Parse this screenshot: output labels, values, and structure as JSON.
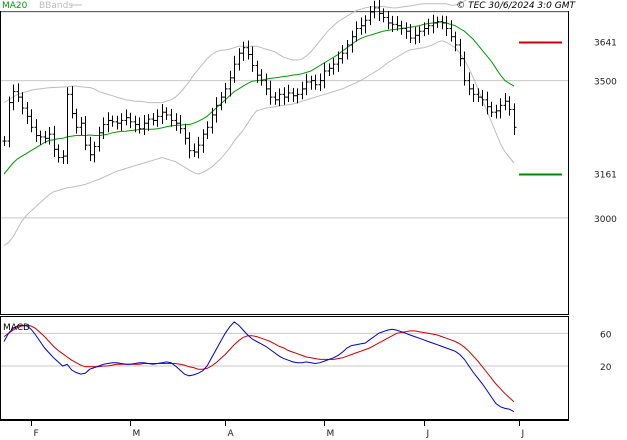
{
  "header": {
    "ma_label": "MA20",
    "bb_label": "BBands",
    "copyright": "© TEC 30/6/2024 3:0 GMT"
  },
  "colors": {
    "ma": "#009900",
    "bb": "#bdbdbd",
    "price": "#000000",
    "macd": "#0000cc",
    "signal": "#cc0000",
    "resistance": "#cc0000",
    "support": "#008800",
    "grid": "#c8c8c8",
    "frame": "#000000"
  },
  "chart_data": [
    {
      "type": "bar",
      "subtype": "ohlc",
      "name": "price-panel",
      "yaxis": {
        "ticks": [
          "3500",
          "3000"
        ],
        "tick_values": [
          3500,
          3000
        ],
        "range": [
          2650,
          3750
        ],
        "position": "right"
      },
      "xaxis": {
        "labels": [
          "F",
          "M",
          "A",
          "M",
          "J",
          "J"
        ],
        "label_index": [
          6,
          28,
          49,
          71,
          93,
          114
        ]
      },
      "levels": [
        {
          "label": "3641",
          "value": 3641,
          "color": "#cc0000"
        },
        {
          "label": "3161",
          "value": 3161,
          "color": "#008800"
        }
      ],
      "closes": [
        3280,
        3420,
        3460,
        3440,
        3400,
        3370,
        3330,
        3300,
        3295,
        3290,
        3305,
        3250,
        3220,
        3225,
        3450,
        3380,
        3330,
        3345,
        3265,
        3230,
        3260,
        3310,
        3340,
        3355,
        3350,
        3345,
        3355,
        3365,
        3350,
        3340,
        3325,
        3345,
        3360,
        3355,
        3370,
        3385,
        3375,
        3355,
        3345,
        3325,
        3290,
        3245,
        3240,
        3265,
        3305,
        3330,
        3375,
        3410,
        3440,
        3470,
        3510,
        3560,
        3600,
        3620,
        3595,
        3555,
        3520,
        3500,
        3470,
        3440,
        3430,
        3450,
        3440,
        3455,
        3445,
        3450,
        3470,
        3495,
        3500,
        3485,
        3500,
        3535,
        3545,
        3560,
        3580,
        3600,
        3630,
        3660,
        3690,
        3700,
        3720,
        3750,
        3765,
        3745,
        3730,
        3710,
        3705,
        3700,
        3690,
        3680,
        3655,
        3665,
        3680,
        3690,
        3700,
        3710,
        3715,
        3710,
        3690,
        3660,
        3630,
        3580,
        3500,
        3470,
        3450,
        3440,
        3430,
        3405,
        3385,
        3390,
        3410,
        3425,
        3395,
        3330
      ],
      "ma20": [
        3160,
        3180,
        3200,
        3215,
        3225,
        3235,
        3245,
        3255,
        3265,
        3275,
        3282,
        3285,
        3288,
        3290,
        3295,
        3298,
        3300,
        3300,
        3300,
        3302,
        3300,
        3300,
        3302,
        3305,
        3310,
        3313,
        3315,
        3316,
        3318,
        3320,
        3322,
        3323,
        3323,
        3323,
        3325,
        3328,
        3332,
        3335,
        3337,
        3338,
        3340,
        3340,
        3345,
        3352,
        3360,
        3370,
        3385,
        3400,
        3415,
        3430,
        3445,
        3460,
        3470,
        3480,
        3490,
        3498,
        3500,
        3502,
        3505,
        3508,
        3510,
        3512,
        3515,
        3517,
        3520,
        3522,
        3525,
        3530,
        3535,
        3545,
        3555,
        3565,
        3575,
        3585,
        3595,
        3608,
        3620,
        3632,
        3644,
        3653,
        3660,
        3665,
        3670,
        3675,
        3680,
        3683,
        3685,
        3687,
        3690,
        3692,
        3695,
        3697,
        3700,
        3705,
        3708,
        3710,
        3712,
        3714,
        3710,
        3705,
        3700,
        3690,
        3680,
        3665,
        3650,
        3630,
        3610,
        3590,
        3570,
        3545,
        3520,
        3500,
        3490,
        3480
      ],
      "bb_upper": [
        3420,
        3430,
        3440,
        3450,
        3455,
        3460,
        3465,
        3468,
        3470,
        3472,
        3474,
        3475,
        3476,
        3477,
        3478,
        3480,
        3480,
        3478,
        3476,
        3475,
        3470,
        3460,
        3455,
        3450,
        3445,
        3440,
        3435,
        3430,
        3428,
        3425,
        3425,
        3423,
        3420,
        3420,
        3420,
        3420,
        3425,
        3430,
        3440,
        3455,
        3475,
        3495,
        3520,
        3540,
        3560,
        3580,
        3595,
        3605,
        3610,
        3612,
        3615,
        3620,
        3625,
        3625,
        3625,
        3625,
        3625,
        3620,
        3615,
        3610,
        3605,
        3595,
        3585,
        3580,
        3575,
        3575,
        3578,
        3590,
        3605,
        3625,
        3645,
        3665,
        3685,
        3700,
        3715,
        3725,
        3735,
        3745,
        3755,
        3760,
        3765,
        3768,
        3770,
        3770,
        3770,
        3768,
        3765,
        3765,
        3768,
        3770,
        3772,
        3775,
        3778,
        3780,
        3780,
        3780,
        3780,
        3780,
        3780,
        3775,
        3775,
        3780,
        3790,
        3800,
        3810,
        3818,
        3822,
        3825,
        3825,
        3822,
        3820,
        3815,
        3810,
        3800
      ],
      "bb_lower": [
        2900,
        2910,
        2930,
        2960,
        2990,
        3010,
        3025,
        3040,
        3055,
        3070,
        3085,
        3095,
        3100,
        3105,
        3110,
        3112,
        3115,
        3118,
        3122,
        3128,
        3135,
        3140,
        3148,
        3155,
        3163,
        3170,
        3175,
        3180,
        3185,
        3190,
        3195,
        3200,
        3205,
        3210,
        3215,
        3220,
        3215,
        3210,
        3205,
        3195,
        3185,
        3175,
        3165,
        3160,
        3165,
        3175,
        3185,
        3200,
        3215,
        3235,
        3255,
        3280,
        3300,
        3320,
        3345,
        3370,
        3390,
        3395,
        3400,
        3402,
        3405,
        3408,
        3410,
        3412,
        3415,
        3420,
        3425,
        3430,
        3435,
        3440,
        3445,
        3450,
        3455,
        3460,
        3465,
        3470,
        3478,
        3485,
        3492,
        3500,
        3510,
        3520,
        3530,
        3540,
        3552,
        3565,
        3575,
        3585,
        3595,
        3605,
        3612,
        3615,
        3618,
        3620,
        3625,
        3630,
        3640,
        3645,
        3640,
        3630,
        3620,
        3600,
        3575,
        3545,
        3510,
        3470,
        3430,
        3390,
        3350,
        3310,
        3270,
        3240,
        3220,
        3200
      ]
    },
    {
      "type": "line",
      "name": "macd-panel",
      "title": "MACD",
      "yaxis": {
        "ticks": [
          "60",
          "20"
        ],
        "tick_values": [
          60,
          20
        ],
        "range": [
          -45,
          80
        ],
        "position": "right"
      },
      "series": [
        {
          "key": "macd",
          "values": [
            50,
            60,
            66,
            69,
            70,
            69,
            65,
            58,
            50,
            42,
            36,
            30,
            25,
            20,
            22,
            15,
            12,
            10,
            11,
            16,
            18,
            20,
            22,
            23,
            24,
            24,
            23,
            22,
            22,
            23,
            24,
            24,
            23,
            22,
            23,
            24,
            25,
            24,
            20,
            15,
            10,
            8,
            9,
            11,
            14,
            20,
            30,
            40,
            50,
            60,
            68,
            74,
            70,
            64,
            58,
            53,
            50,
            47,
            44,
            40,
            36,
            32,
            29,
            27,
            25,
            24,
            24,
            25,
            24,
            23,
            24,
            26,
            28,
            30,
            33,
            37,
            42,
            45,
            46,
            47,
            48,
            52,
            56,
            60,
            62,
            64,
            65,
            64,
            62,
            60,
            58,
            56,
            54,
            52,
            50,
            48,
            46,
            44,
            42,
            40,
            38,
            34,
            28,
            20,
            12,
            5,
            -2,
            -10,
            -18,
            -26,
            -30,
            -32,
            -33,
            -36
          ]
        },
        {
          "key": "signal",
          "values": [
            56,
            60,
            64,
            67,
            69,
            70,
            69,
            66,
            61,
            56,
            50,
            44,
            39,
            35,
            31,
            27,
            24,
            21,
            19,
            19,
            19,
            19,
            20,
            20,
            21,
            22,
            22,
            22,
            22,
            22,
            22,
            23,
            23,
            23,
            23,
            23,
            23,
            23,
            23,
            22,
            21,
            19,
            18,
            16,
            16,
            17,
            20,
            24,
            29,
            34,
            40,
            46,
            51,
            55,
            57,
            57,
            56,
            54,
            52,
            50,
            47,
            44,
            42,
            39,
            37,
            35,
            33,
            31,
            30,
            29,
            28,
            28,
            28,
            28,
            29,
            30,
            32,
            34,
            36,
            38,
            40,
            42,
            45,
            48,
            51,
            54,
            57,
            60,
            61,
            62,
            63,
            63,
            62,
            61,
            60,
            59,
            58,
            56,
            54,
            52,
            50,
            47,
            43,
            38,
            32,
            26,
            19,
            12,
            5,
            -2,
            -8,
            -14,
            -19,
            -24
          ]
        }
      ]
    }
  ]
}
